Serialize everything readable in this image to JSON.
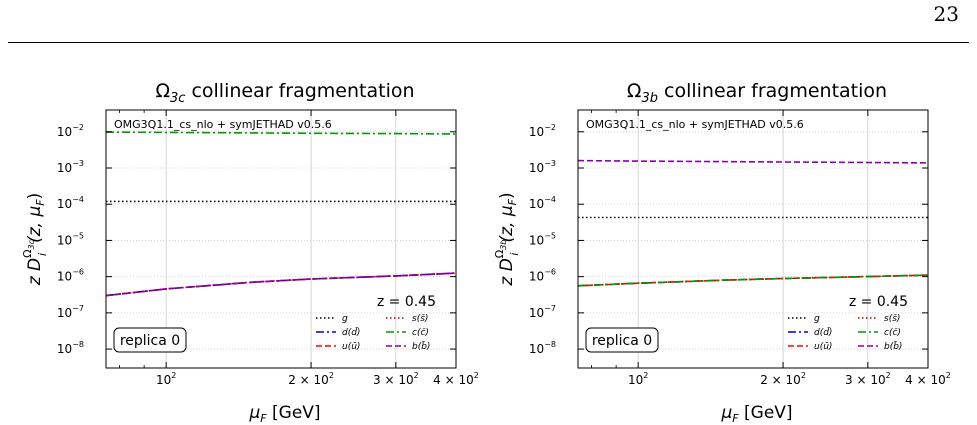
{
  "page": {
    "number": "23"
  },
  "chart_data": [
    {
      "type": "line",
      "title": "Ω3c collinear fragmentation",
      "title_base": "Ω",
      "title_sub": "3c",
      "title_rest": "collinear fragmentation",
      "ylabel_parts": {
        "pre": "z D",
        "sup": "Ω",
        "supsub": "3c",
        "sub": "i",
        "post": "(z, μ",
        "postsub": "F",
        "end": ")"
      },
      "xlabel_parts": {
        "pre": "μ",
        "sub": "F",
        "post": " [GeV]"
      },
      "annotation_header": "OMG3Q1.1_cs_nlo + symJETHAD v0.5.6",
      "annotation_z": "z = 0.45",
      "annotation_replica": "replica 0",
      "xscale": "log",
      "yscale": "log",
      "xlim": [
        75,
        400
      ],
      "ylim": [
        3e-09,
        0.04
      ],
      "grid": true,
      "legend_placement": "lower-right",
      "x_ticks": [
        {
          "value": 100,
          "base": "10",
          "exp": "2",
          "mult": ""
        },
        {
          "value": 200,
          "base": "10",
          "exp": "2",
          "mult": "2 × "
        },
        {
          "value": 300,
          "base": "10",
          "exp": "2",
          "mult": "3 × "
        },
        {
          "value": 400,
          "base": "10",
          "exp": "2",
          "mult": "4 × "
        }
      ],
      "y_ticks": [
        {
          "value": 1e-08,
          "base": "10",
          "exp": "−8"
        },
        {
          "value": 1e-07,
          "base": "10",
          "exp": "−7"
        },
        {
          "value": 1e-06,
          "base": "10",
          "exp": "−6"
        },
        {
          "value": 1e-05,
          "base": "10",
          "exp": "−5"
        },
        {
          "value": 0.0001,
          "base": "10",
          "exp": "−4"
        },
        {
          "value": 0.001,
          "base": "10",
          "exp": "−3"
        },
        {
          "value": 0.01,
          "base": "10",
          "exp": "−2"
        }
      ],
      "x": [
        75,
        100,
        150,
        200,
        300,
        400
      ],
      "series": [
        {
          "name": "g",
          "color": "#000000",
          "dash": "1.5,2.5",
          "values": [
            0.00012,
            0.00012,
            0.00012,
            0.00012,
            0.00012,
            0.00012
          ]
        },
        {
          "name": "d(d̄)",
          "color": "#0000cc",
          "dash": "8,3,2,3",
          "values": [
            3e-07,
            4.6e-07,
            7e-07,
            8.6e-07,
            1.05e-06,
            1.25e-06
          ]
        },
        {
          "name": "u(ū)",
          "color": "#ff0000",
          "dash": "6,3",
          "values": [
            3e-07,
            4.6e-07,
            7e-07,
            8.6e-07,
            1.05e-06,
            1.25e-06
          ]
        },
        {
          "name": "s(s̄)",
          "color": "#cc0000",
          "dash": "1.5,2.5",
          "values": [
            3e-07,
            4.6e-07,
            7e-07,
            8.6e-07,
            1.05e-06,
            1.25e-06
          ]
        },
        {
          "name": "c(c̄)",
          "color": "#009900",
          "dash": "8,3,2,3",
          "values": [
            0.0098,
            0.0096,
            0.0093,
            0.0091,
            0.0089,
            0.0087
          ]
        },
        {
          "name": "b(b̄)",
          "color": "#8800aa",
          "dash": "6,3",
          "values": [
            3e-07,
            4.6e-07,
            7e-07,
            8.6e-07,
            1.05e-06,
            1.25e-06
          ]
        }
      ]
    },
    {
      "type": "line",
      "title": "Ω3b collinear fragmentation",
      "title_base": "Ω",
      "title_sub": "3b",
      "title_rest": "collinear fragmentation",
      "ylabel_parts": {
        "pre": "z D",
        "sup": "Ω",
        "supsub": "3b",
        "sub": "i",
        "post": "(z, μ",
        "postsub": "F",
        "end": ")"
      },
      "xlabel_parts": {
        "pre": "μ",
        "sub": "F",
        "post": " [GeV]"
      },
      "annotation_header": "OMG3Q1.1_cs_nlo + symJETHAD v0.5.6",
      "annotation_z": "z = 0.45",
      "annotation_replica": "replica 0",
      "xscale": "log",
      "yscale": "log",
      "xlim": [
        75,
        400
      ],
      "ylim": [
        3e-09,
        0.04
      ],
      "grid": true,
      "legend_placement": "lower-right",
      "x_ticks": [
        {
          "value": 100,
          "base": "10",
          "exp": "2",
          "mult": ""
        },
        {
          "value": 200,
          "base": "10",
          "exp": "2",
          "mult": "2 × "
        },
        {
          "value": 300,
          "base": "10",
          "exp": "2",
          "mult": "3 × "
        },
        {
          "value": 400,
          "base": "10",
          "exp": "2",
          "mult": "4 × "
        }
      ],
      "y_ticks": [
        {
          "value": 1e-08,
          "base": "10",
          "exp": "−8"
        },
        {
          "value": 1e-07,
          "base": "10",
          "exp": "−7"
        },
        {
          "value": 1e-06,
          "base": "10",
          "exp": "−6"
        },
        {
          "value": 1e-05,
          "base": "10",
          "exp": "−5"
        },
        {
          "value": 0.0001,
          "base": "10",
          "exp": "−4"
        },
        {
          "value": 0.001,
          "base": "10",
          "exp": "−3"
        },
        {
          "value": 0.01,
          "base": "10",
          "exp": "−2"
        }
      ],
      "x": [
        75,
        100,
        150,
        200,
        300,
        400
      ],
      "series": [
        {
          "name": "g",
          "color": "#000000",
          "dash": "1.5,2.5",
          "values": [
            4.3e-05,
            4.3e-05,
            4.3e-05,
            4.3e-05,
            4.3e-05,
            4.3e-05
          ]
        },
        {
          "name": "d(d̄)",
          "color": "#0000cc",
          "dash": "8,3,2,3",
          "values": [
            5.6e-07,
            6.6e-07,
            8e-07,
            8.9e-07,
            1e-06,
            1.1e-06
          ]
        },
        {
          "name": "u(ū)",
          "color": "#ff0000",
          "dash": "6,3",
          "values": [
            5.6e-07,
            6.6e-07,
            8e-07,
            8.9e-07,
            1e-06,
            1.1e-06
          ]
        },
        {
          "name": "s(s̄)",
          "color": "#cc0000",
          "dash": "1.5,2.5",
          "values": [
            5.6e-07,
            6.6e-07,
            8e-07,
            8.9e-07,
            1e-06,
            1.1e-06
          ]
        },
        {
          "name": "c(c̄)",
          "color": "#009900",
          "dash": "8,3,2,3",
          "values": [
            5.6e-07,
            6.6e-07,
            8e-07,
            8.9e-07,
            1e-06,
            1.1e-06
          ]
        },
        {
          "name": "b(b̄)",
          "color": "#8800aa",
          "dash": "6,3",
          "values": [
            0.0016,
            0.00155,
            0.0015,
            0.00147,
            0.00142,
            0.00138
          ]
        }
      ]
    }
  ]
}
